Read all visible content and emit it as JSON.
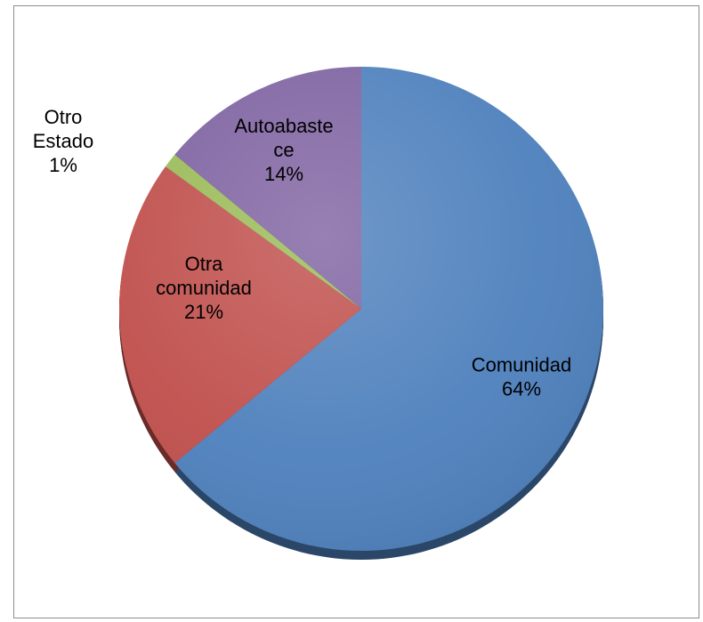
{
  "chart_data": {
    "type": "pie",
    "title": "",
    "slices": [
      {
        "label": "Comunidad",
        "label_lines": [
          "Comunidad"
        ],
        "value": 64,
        "pct_text": "64%",
        "color": "#4f81bd"
      },
      {
        "label": "Otra comunidad",
        "label_lines": [
          "Otra",
          "comunidad"
        ],
        "value": 21,
        "pct_text": "21%",
        "color": "#c0504d"
      },
      {
        "label": "Otro Estado",
        "label_lines": [
          "Otro",
          "Estado"
        ],
        "value": 1,
        "pct_text": "1%",
        "color": "#9bbb59"
      },
      {
        "label": "Autoabastece",
        "label_lines": [
          "Autoabaste",
          "ce"
        ],
        "value": 14,
        "pct_text": "14%",
        "color": "#8064a2"
      }
    ],
    "legend": "none"
  }
}
